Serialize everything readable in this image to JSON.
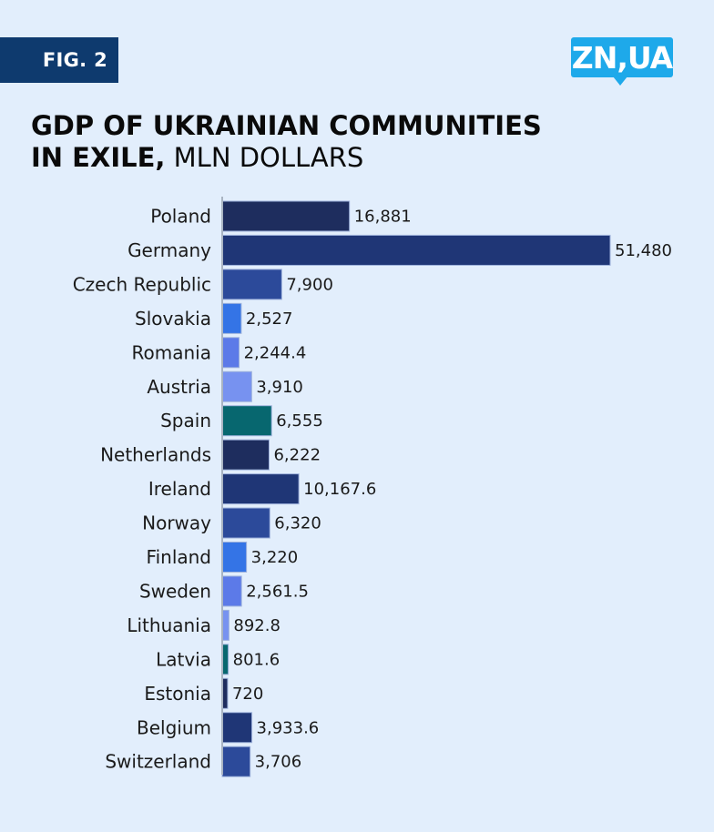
{
  "header": {
    "figure_label": "FIG. 2",
    "logo_text": "ZN,UA"
  },
  "colors": {
    "background": "#e2eefc",
    "badge": "#0e3a6e",
    "logo": "#1ea9ea",
    "axis": "#a9b4c2"
  },
  "chart_data": {
    "type": "bar",
    "orientation": "horizontal",
    "title_bold": "GDP OF UKRAINIAN COMMUNITIES IN EXILE,",
    "title_light": "MLN DOLLARS",
    "title_line1": "GDP OF UKRAINIAN COMMUNITIES",
    "title_line2_bold": "IN EXILE,",
    "title_line2_light": "MLN DOLLARS",
    "xlabel": "",
    "ylabel": "",
    "grid": false,
    "xlim": [
      0,
      51480
    ],
    "categories": [
      "Poland",
      "Germany",
      "Czech Republic",
      "Slovakia",
      "Romania",
      "Austria",
      "Spain",
      "Netherlands",
      "Ireland",
      "Norway",
      "Finland",
      "Sweden",
      "Lithuania",
      "Latvia",
      "Estonia",
      "Belgium",
      "Switzerland"
    ],
    "values": [
      16881,
      51480,
      7900,
      2527,
      2244.4,
      3910,
      6555,
      6222,
      10167.6,
      6320,
      3220,
      2561.5,
      892.8,
      801.6,
      720,
      3933.6,
      3706
    ],
    "value_labels": [
      "16,881",
      "51,480",
      "7,900",
      "2,527",
      "2,244.4",
      "3,910",
      "6,555",
      "6,222",
      "10,167.6",
      "6,320",
      "3,220",
      "2,561.5",
      "892.8",
      "801.6",
      "720",
      "3,933.6",
      "3,706"
    ],
    "bar_colors": [
      "#1e2d5e",
      "#1f3676",
      "#2c4a9a",
      "#3474e6",
      "#5c7ae8",
      "#7792f0",
      "#07676f",
      "#1e2d5e",
      "#1f3676",
      "#2c4a9a",
      "#3474e6",
      "#5c7ae8",
      "#7792f0",
      "#07676f",
      "#1e2d5e",
      "#1f3676",
      "#2c4a9a"
    ]
  }
}
